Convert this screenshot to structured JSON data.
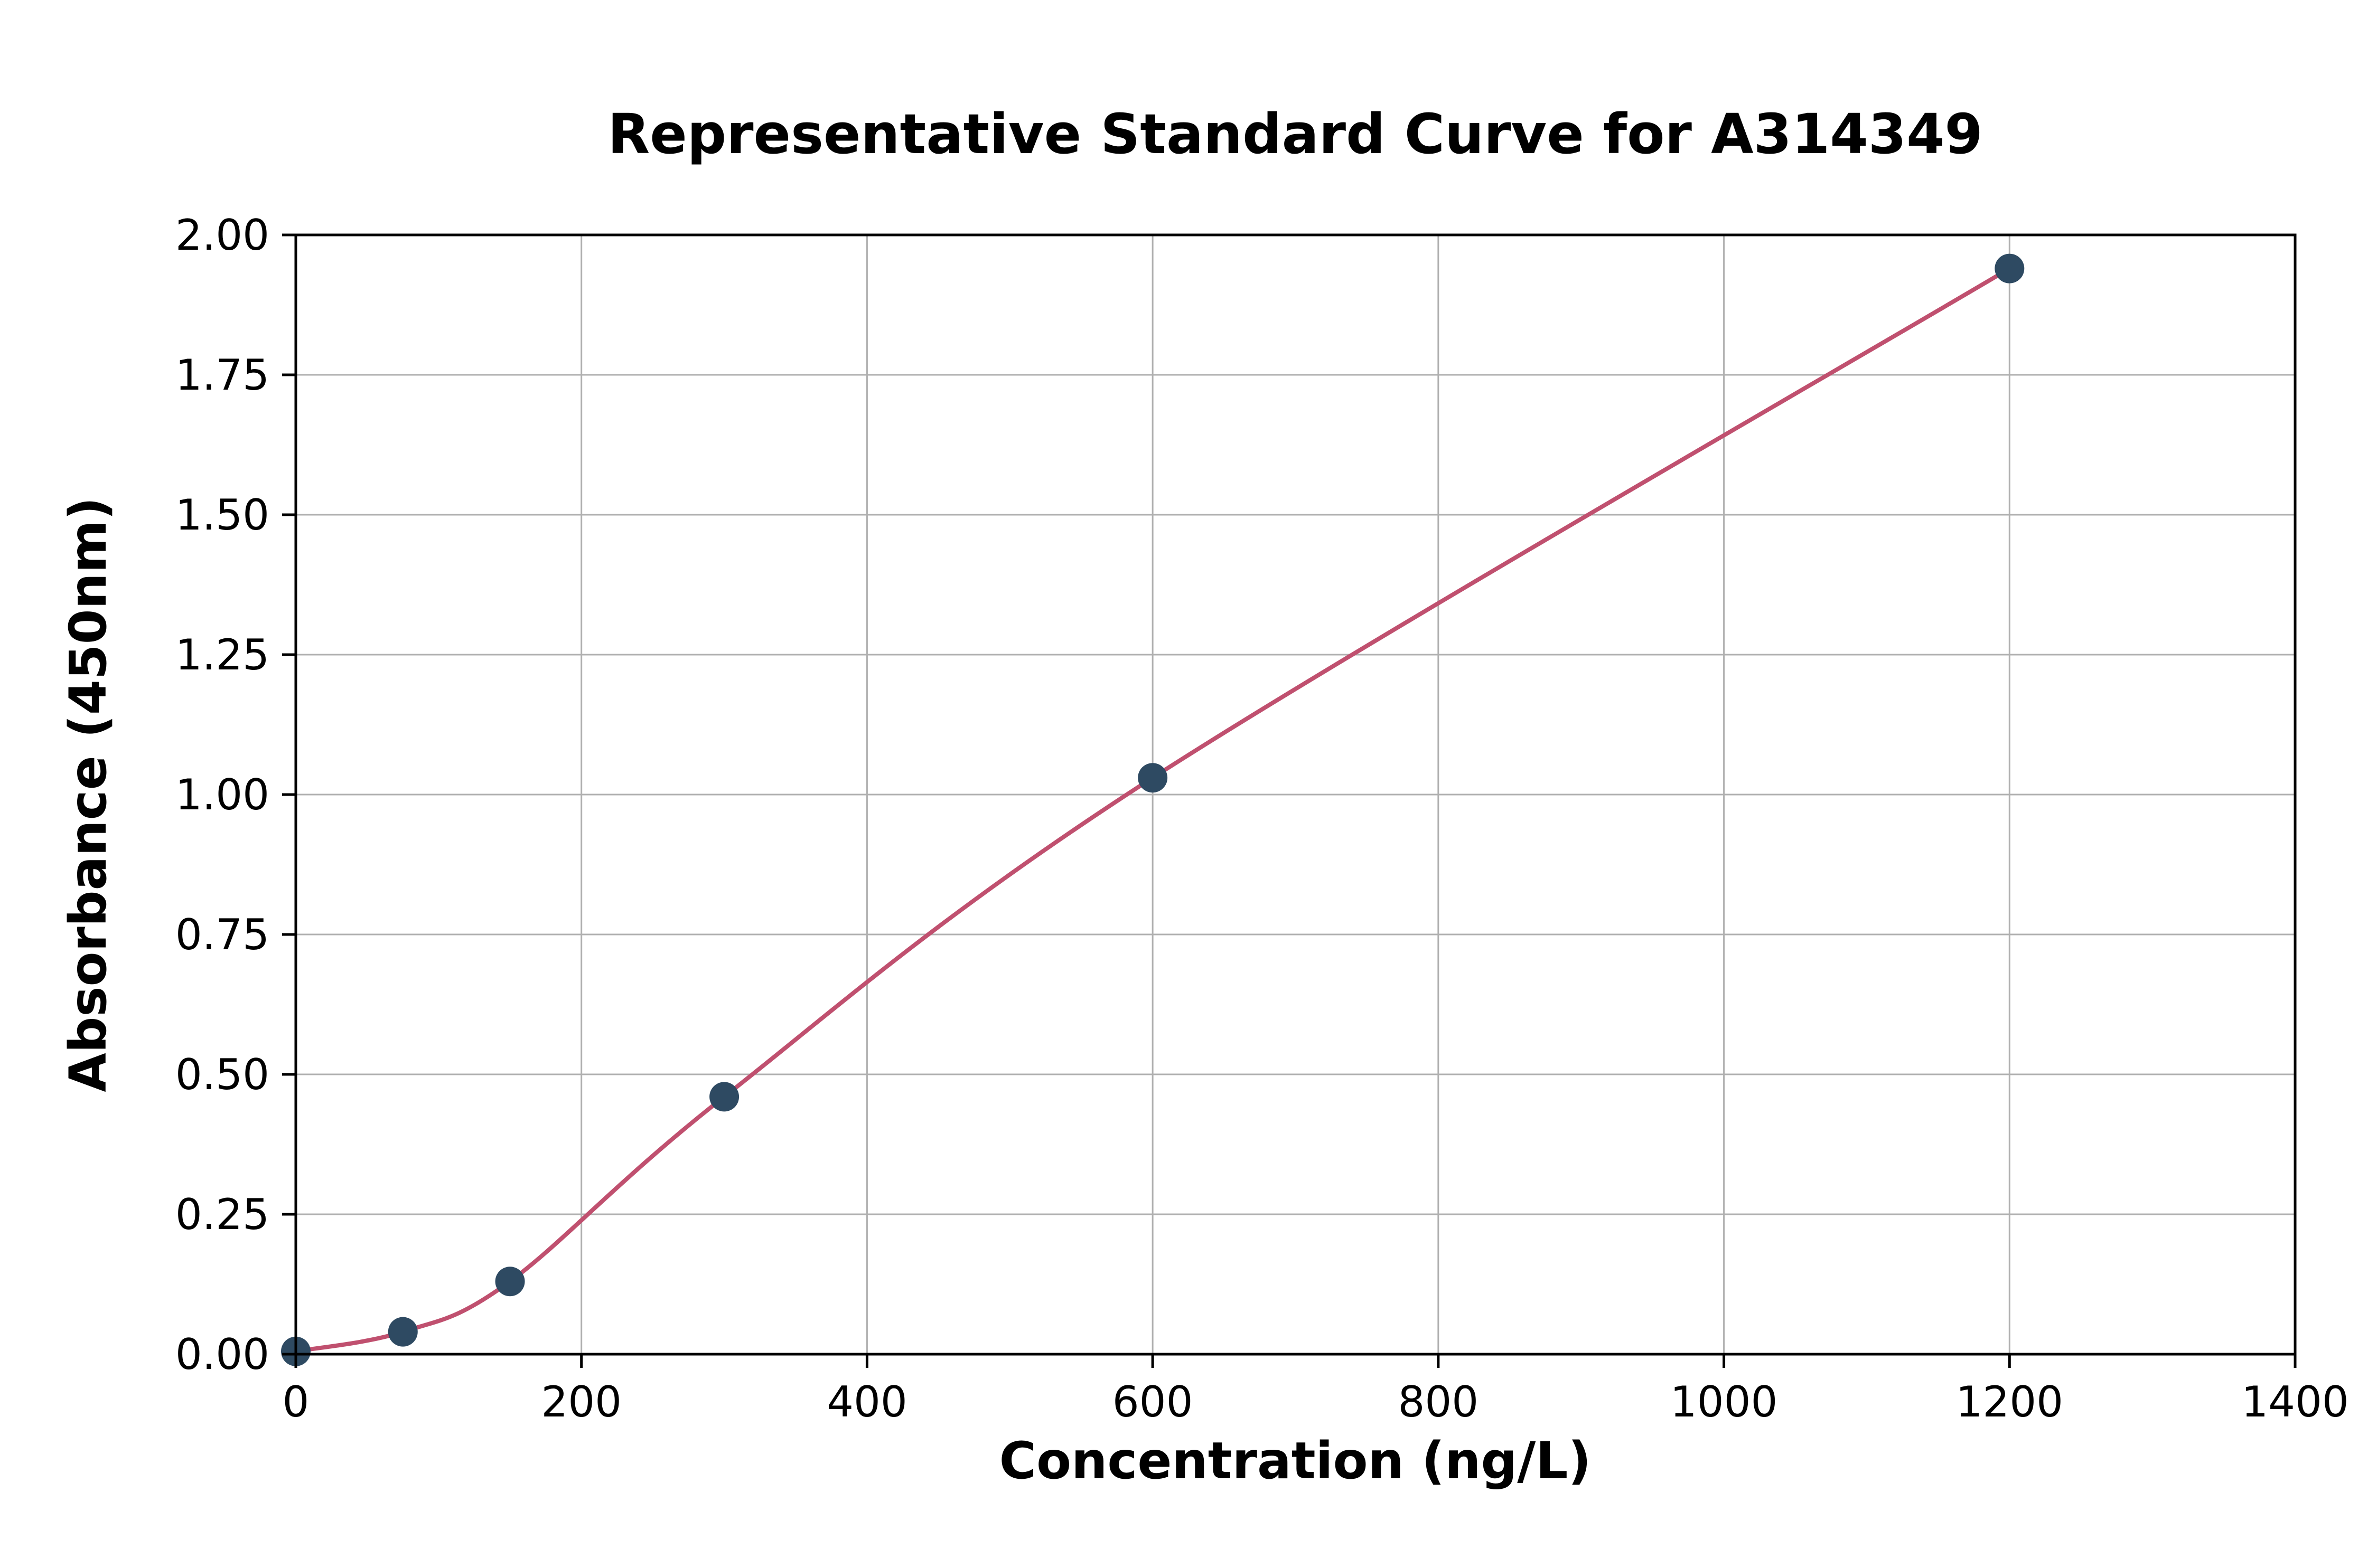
{
  "chart_data": {
    "type": "scatter",
    "title": "Representative Standard Curve for A314349",
    "xlabel": "Concentration (ng/L)",
    "ylabel": "Absorbance (450nm)",
    "xlim": [
      0,
      1400
    ],
    "ylim": [
      0.0,
      2.0
    ],
    "x_ticks": [
      0,
      200,
      400,
      600,
      800,
      1000,
      1200,
      1400
    ],
    "x_tick_labels": [
      "0",
      "200",
      "400",
      "600",
      "800",
      "1000",
      "1200",
      "1400"
    ],
    "y_ticks": [
      0.0,
      0.25,
      0.5,
      0.75,
      1.0,
      1.25,
      1.5,
      1.75,
      2.0
    ],
    "y_tick_labels": [
      "0.00",
      "0.25",
      "0.50",
      "0.75",
      "1.00",
      "1.25",
      "1.50",
      "1.75",
      "2.00"
    ],
    "grid": true,
    "legend": null,
    "series": [
      {
        "name": "standard-points",
        "kind": "scatter",
        "x": [
          0,
          75,
          150,
          300,
          600,
          1200
        ],
        "y": [
          0.005,
          0.04,
          0.13,
          0.46,
          1.03,
          1.94
        ]
      },
      {
        "name": "fitted-curve",
        "kind": "smooth-line",
        "x": [
          0,
          75,
          150,
          300,
          600,
          1200
        ],
        "y": [
          0.005,
          0.04,
          0.13,
          0.46,
          1.03,
          1.94
        ]
      }
    ],
    "colors": {
      "curve": "#c0506f",
      "points": "#2e4a62",
      "grid": "#b0b0b0",
      "spine": "#000000",
      "background": "#ffffff"
    }
  }
}
